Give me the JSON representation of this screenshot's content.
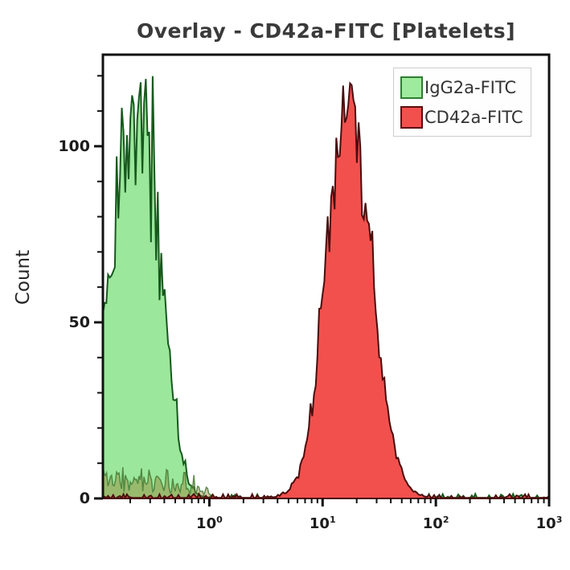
{
  "chart_data": {
    "type": "area",
    "subtype": "flow-cytometry-histogram-overlay",
    "title": "Overlay - CD42a-FITC [Platelets]",
    "ylabel": "Count",
    "x_scale": "log10",
    "x_decades_visible": [
      -0.94,
      3.0
    ],
    "x_major_ticks": [
      {
        "decade": 0,
        "base": "10",
        "exp": "0"
      },
      {
        "decade": 1,
        "base": "10",
        "exp": "1"
      },
      {
        "decade": 2,
        "base": "10",
        "exp": "2"
      },
      {
        "decade": 3,
        "base": "10",
        "exp": "3"
      }
    ],
    "y_ticks_major": [
      0,
      50,
      100
    ],
    "y_minor_step": 10,
    "ylim": [
      0,
      126
    ],
    "grid": false,
    "axis_color": "#111111",
    "legend": {
      "position": "top-right",
      "items": [
        {
          "label": "IgG2a-FITC",
          "fill": "#9FEB9D",
          "stroke": "#2E7D32"
        },
        {
          "label": "CD42a-FITC",
          "fill": "#F2504D",
          "stroke": "#5A0D0D"
        }
      ]
    },
    "series": [
      {
        "name": "IgG2a-FITC",
        "role": "isotype-control",
        "fill": "#9BE79B",
        "stroke": "#16591D",
        "distribution": {
          "peak_x_value": 0.27,
          "center_log10": -0.57,
          "peak_count": 106,
          "sigma_left_decades": 0.3,
          "sigma_right_decades": 0.155
        },
        "noise_amp": 0.13,
        "noise_seed": 7
      },
      {
        "name": "CD42a-FITC",
        "role": "stained-sample",
        "fill": "#F2504D",
        "stroke": "#4A0D0D",
        "distribution": {
          "peak_x_value": 16.6,
          "center_log10": 1.22,
          "peak_count": 110,
          "sigma_left_decades": 0.185,
          "sigma_right_decades": 0.205
        },
        "noise_amp": 0.1,
        "noise_seed": 13
      }
    ],
    "debris_noise": {
      "range_decades": [
        -0.94,
        0.05
      ],
      "max_count": 8,
      "fill": "rgba(150,125,45,0.42)",
      "stroke": "rgba(70,125,55,0.85)",
      "seed": 3
    }
  }
}
